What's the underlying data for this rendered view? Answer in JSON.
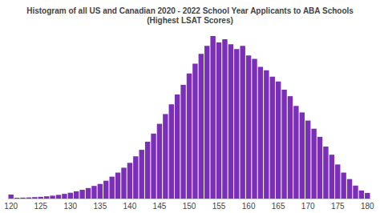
{
  "chart_data": {
    "type": "histogram",
    "title": "Histogram of all US and Canadian 2020 - 2022 School Year Applicants to ABA Schools",
    "subtitle": "(Highest LSAT Scores)",
    "bins": [
      119.5,
      120.5,
      121.5,
      122.5,
      123.5,
      124.5,
      125.5,
      126.5,
      127.5,
      128.5,
      129.5,
      130.5,
      131.5,
      132.5,
      133.5,
      134.5,
      135.5,
      136.5,
      137.5,
      138.5,
      139.5,
      140.5,
      141.5,
      142.5,
      143.5,
      144.5,
      145.5,
      146.5,
      147.5,
      148.5,
      149.5,
      150.5,
      151.5,
      152.5,
      153.5,
      154.5,
      155.5,
      156.5,
      157.5,
      158.5,
      159.5,
      160.5,
      161.5,
      162.5,
      163.5,
      164.5,
      165.5,
      166.5,
      167.5,
      168.5,
      169.5,
      170.5,
      171.5,
      172.5,
      173.5,
      174.5,
      175.5,
      176.5,
      177.5,
      178.5,
      179.5,
      180.5
    ],
    "counts": [
      2.5,
      0.5,
      0.6,
      0.7,
      0.9,
      1.1,
      1.4,
      1.8,
      2.3,
      2.9,
      3.6,
      4.5,
      5.4,
      6.5,
      7.8,
      9,
      11,
      13.5,
      16,
      19,
      22,
      26,
      30,
      35,
      40,
      46,
      52,
      58,
      64,
      70,
      77,
      83,
      89,
      94,
      100,
      96,
      98,
      95,
      92,
      94,
      88,
      86,
      81,
      79,
      75,
      72,
      67,
      63,
      57,
      53,
      48,
      43,
      38,
      32,
      27,
      21,
      16,
      12,
      8,
      5,
      3.5
    ],
    "color": "#7b2fb8",
    "xlim": [
      119.5,
      180.5
    ],
    "xticks": [
      120,
      125,
      130,
      135,
      140,
      145,
      150,
      155,
      160,
      165,
      170,
      175,
      180
    ],
    "ylim": [
      0,
      100
    ],
    "grid": false,
    "tick_labels": "x"
  }
}
